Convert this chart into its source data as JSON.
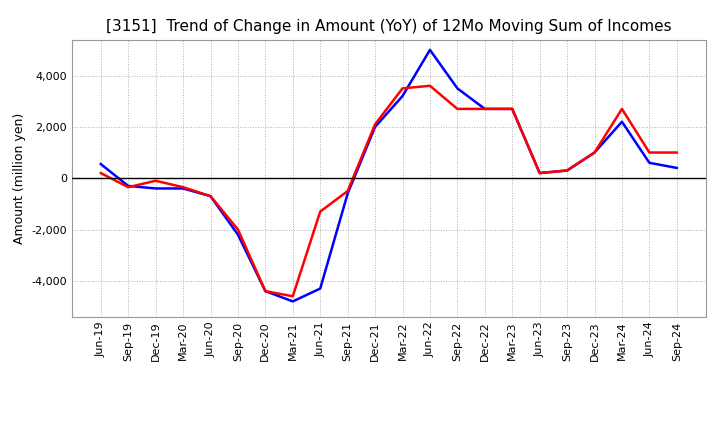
{
  "title": "[3151]  Trend of Change in Amount (YoY) of 12Mo Moving Sum of Incomes",
  "ylabel": "Amount (million yen)",
  "x_labels": [
    "Jun-19",
    "Sep-19",
    "Dec-19",
    "Mar-20",
    "Jun-20",
    "Sep-20",
    "Dec-20",
    "Mar-21",
    "Jun-21",
    "Sep-21",
    "Dec-21",
    "Mar-22",
    "Jun-22",
    "Sep-22",
    "Dec-22",
    "Mar-23",
    "Jun-23",
    "Sep-23",
    "Dec-23",
    "Mar-24",
    "Jun-24",
    "Sep-24"
  ],
  "ordinary_income": [
    550,
    -300,
    -400,
    -400,
    -700,
    -2200,
    -4400,
    -4800,
    -4300,
    -600,
    2000,
    3200,
    5000,
    3500,
    2700,
    2700,
    200,
    300,
    1000,
    2200,
    600,
    400
  ],
  "net_income": [
    200,
    -350,
    -100,
    -350,
    -700,
    -2000,
    -4400,
    -4600,
    -1300,
    -500,
    2100,
    3500,
    3600,
    2700,
    2700,
    2700,
    200,
    300,
    1000,
    2700,
    1000,
    1000
  ],
  "ordinary_color": "#0000ff",
  "net_color": "#ff0000",
  "ylim": [
    -5400,
    5400
  ],
  "yticks": [
    -4000,
    -2000,
    0,
    2000,
    4000
  ],
  "background_color": "#ffffff",
  "grid_color": "#b0b0b0",
  "title_fontsize": 11,
  "ylabel_fontsize": 9,
  "tick_fontsize": 8
}
